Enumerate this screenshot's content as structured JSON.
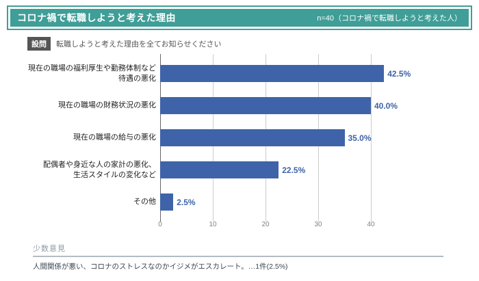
{
  "header": {
    "title": "コロナ禍で転職しようと考えた理由",
    "sample": "n=40（コロナ禍で転職しようと考えた人）"
  },
  "question": {
    "label": "設問",
    "text": "転職しようと考えた理由を全てお知らせください"
  },
  "chart_data": {
    "type": "bar",
    "orientation": "horizontal",
    "title": "コロナ禍で転職しようと考えた理由",
    "xlabel": "",
    "ylabel": "",
    "unit": "%",
    "xlim": [
      0,
      50
    ],
    "xmax": 50,
    "grid": true,
    "ticks": [
      "0",
      "10",
      "20",
      "30",
      "40"
    ],
    "bar_color": "#3e63a9",
    "categories": [
      "現在の職場の福利厚生や勤務体制など待遇の悪化",
      "現在の職場の財務状況の悪化",
      "現在の職場の給与の悪化",
      "配偶者や身近な人の家計の悪化、生活スタイルの変化など",
      "その他"
    ],
    "values": [
      42.5,
      40.0,
      35.0,
      22.5,
      2.5
    ],
    "rows": [
      {
        "label_line1": "現在の職場の福利厚生や勤務体制など",
        "label_line2": "待遇の悪化",
        "value": 42.5,
        "value_label": "42.5%"
      },
      {
        "label_line1": "現在の職場の財務状況の悪化",
        "label_line2": "",
        "value": 40.0,
        "value_label": "40.0%"
      },
      {
        "label_line1": "現在の職場の給与の悪化",
        "label_line2": "",
        "value": 35.0,
        "value_label": "35.0%"
      },
      {
        "label_line1": "配偶者や身近な人の家計の悪化、",
        "label_line2": "生活スタイルの変化など",
        "value": 22.5,
        "value_label": "22.5%"
      },
      {
        "label_line1": "その他",
        "label_line2": "",
        "value": 2.5,
        "value_label": "2.5%"
      }
    ]
  },
  "minority": {
    "heading": "少数意見",
    "comment": "人間関係が悪い、コロナのストレスなのかイジメがエスカレート。…1件(2.5%)"
  },
  "colors": {
    "teal_accent": "#3f9e97",
    "bar_blue": "#3e63a9",
    "question_badge_gray": "#555555",
    "gridline_gray": "#cccccc"
  }
}
